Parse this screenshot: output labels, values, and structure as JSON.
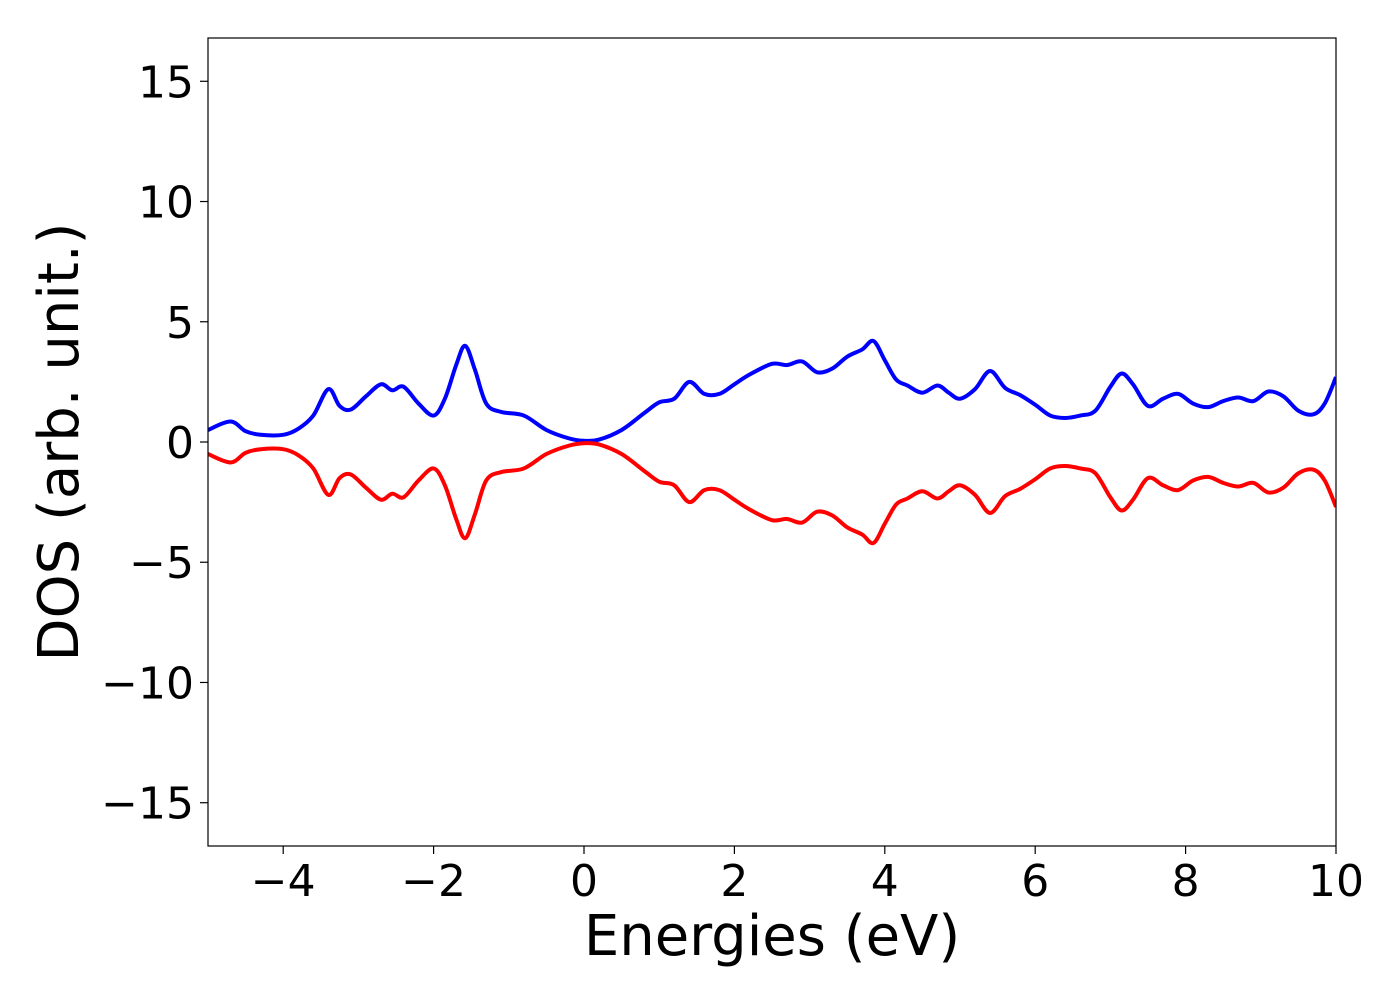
{
  "chart_data": {
    "type": "line",
    "title": "",
    "xlabel": "Energies (eV)",
    "ylabel": "DOS (arb. unit.)",
    "xlim": [
      -5,
      10
    ],
    "ylim": [
      -16.8,
      16.8
    ],
    "grid": false,
    "x_ticks": [
      -4,
      -2,
      0,
      2,
      4,
      6,
      8,
      10
    ],
    "x_tick_labels": [
      "−4",
      "−2",
      "0",
      "2",
      "4",
      "6",
      "8",
      "10"
    ],
    "y_ticks": [
      15,
      10,
      5,
      0,
      -5,
      -10,
      -15
    ],
    "y_tick_labels": [
      "15",
      "10",
      "5",
      "0",
      "−5",
      "−10",
      "−15"
    ],
    "series": [
      {
        "color": "#0000ff",
        "points": [
          [
            -5.0,
            0.5
          ],
          [
            -4.7,
            0.85
          ],
          [
            -4.5,
            0.45
          ],
          [
            -4.3,
            0.3
          ],
          [
            -4.0,
            0.3
          ],
          [
            -3.8,
            0.55
          ],
          [
            -3.6,
            1.1
          ],
          [
            -3.4,
            2.2
          ],
          [
            -3.25,
            1.5
          ],
          [
            -3.1,
            1.35
          ],
          [
            -2.9,
            1.9
          ],
          [
            -2.7,
            2.4
          ],
          [
            -2.55,
            2.15
          ],
          [
            -2.4,
            2.3
          ],
          [
            -2.2,
            1.6
          ],
          [
            -2.0,
            1.1
          ],
          [
            -1.85,
            1.8
          ],
          [
            -1.7,
            3.2
          ],
          [
            -1.58,
            4.0
          ],
          [
            -1.45,
            3.0
          ],
          [
            -1.3,
            1.6
          ],
          [
            -1.1,
            1.25
          ],
          [
            -0.8,
            1.1
          ],
          [
            -0.5,
            0.5
          ],
          [
            -0.2,
            0.15
          ],
          [
            0.0,
            0.05
          ],
          [
            0.2,
            0.1
          ],
          [
            0.5,
            0.5
          ],
          [
            0.8,
            1.2
          ],
          [
            1.0,
            1.65
          ],
          [
            1.2,
            1.8
          ],
          [
            1.4,
            2.5
          ],
          [
            1.6,
            2.0
          ],
          [
            1.8,
            2.0
          ],
          [
            2.0,
            2.4
          ],
          [
            2.2,
            2.8
          ],
          [
            2.5,
            3.25
          ],
          [
            2.7,
            3.2
          ],
          [
            2.9,
            3.35
          ],
          [
            3.1,
            2.9
          ],
          [
            3.3,
            3.05
          ],
          [
            3.5,
            3.55
          ],
          [
            3.7,
            3.85
          ],
          [
            3.85,
            4.2
          ],
          [
            4.0,
            3.4
          ],
          [
            4.15,
            2.6
          ],
          [
            4.3,
            2.35
          ],
          [
            4.5,
            2.05
          ],
          [
            4.7,
            2.35
          ],
          [
            4.85,
            2.05
          ],
          [
            5.0,
            1.8
          ],
          [
            5.2,
            2.2
          ],
          [
            5.4,
            2.95
          ],
          [
            5.6,
            2.25
          ],
          [
            5.8,
            1.95
          ],
          [
            6.0,
            1.55
          ],
          [
            6.2,
            1.1
          ],
          [
            6.4,
            1.0
          ],
          [
            6.6,
            1.1
          ],
          [
            6.8,
            1.3
          ],
          [
            7.0,
            2.3
          ],
          [
            7.15,
            2.85
          ],
          [
            7.3,
            2.4
          ],
          [
            7.5,
            1.5
          ],
          [
            7.7,
            1.8
          ],
          [
            7.9,
            2.0
          ],
          [
            8.1,
            1.6
          ],
          [
            8.3,
            1.45
          ],
          [
            8.5,
            1.7
          ],
          [
            8.7,
            1.85
          ],
          [
            8.9,
            1.7
          ],
          [
            9.1,
            2.1
          ],
          [
            9.3,
            1.9
          ],
          [
            9.5,
            1.3
          ],
          [
            9.7,
            1.15
          ],
          [
            9.85,
            1.6
          ],
          [
            10.0,
            2.7
          ]
        ]
      },
      {
        "color": "#ff0000",
        "points": [
          [
            -5.0,
            -0.5
          ],
          [
            -4.7,
            -0.85
          ],
          [
            -4.5,
            -0.45
          ],
          [
            -4.3,
            -0.3
          ],
          [
            -4.0,
            -0.3
          ],
          [
            -3.8,
            -0.55
          ],
          [
            -3.6,
            -1.1
          ],
          [
            -3.4,
            -2.2
          ],
          [
            -3.25,
            -1.5
          ],
          [
            -3.1,
            -1.35
          ],
          [
            -2.9,
            -1.9
          ],
          [
            -2.7,
            -2.4
          ],
          [
            -2.55,
            -2.15
          ],
          [
            -2.4,
            -2.3
          ],
          [
            -2.2,
            -1.6
          ],
          [
            -2.0,
            -1.1
          ],
          [
            -1.85,
            -1.8
          ],
          [
            -1.7,
            -3.2
          ],
          [
            -1.58,
            -4.0
          ],
          [
            -1.45,
            -3.0
          ],
          [
            -1.3,
            -1.6
          ],
          [
            -1.1,
            -1.25
          ],
          [
            -0.8,
            -1.1
          ],
          [
            -0.5,
            -0.5
          ],
          [
            -0.2,
            -0.15
          ],
          [
            0.0,
            -0.05
          ],
          [
            0.2,
            -0.1
          ],
          [
            0.5,
            -0.5
          ],
          [
            0.8,
            -1.2
          ],
          [
            1.0,
            -1.65
          ],
          [
            1.2,
            -1.8
          ],
          [
            1.4,
            -2.5
          ],
          [
            1.6,
            -2.0
          ],
          [
            1.8,
            -2.0
          ],
          [
            2.0,
            -2.4
          ],
          [
            2.2,
            -2.8
          ],
          [
            2.5,
            -3.25
          ],
          [
            2.7,
            -3.2
          ],
          [
            2.9,
            -3.35
          ],
          [
            3.1,
            -2.9
          ],
          [
            3.3,
            -3.05
          ],
          [
            3.5,
            -3.55
          ],
          [
            3.7,
            -3.85
          ],
          [
            3.85,
            -4.2
          ],
          [
            4.0,
            -3.4
          ],
          [
            4.15,
            -2.6
          ],
          [
            4.3,
            -2.35
          ],
          [
            4.5,
            -2.05
          ],
          [
            4.7,
            -2.35
          ],
          [
            4.85,
            -2.05
          ],
          [
            5.0,
            -1.8
          ],
          [
            5.2,
            -2.2
          ],
          [
            5.4,
            -2.95
          ],
          [
            5.6,
            -2.25
          ],
          [
            5.8,
            -1.95
          ],
          [
            6.0,
            -1.55
          ],
          [
            6.2,
            -1.1
          ],
          [
            6.4,
            -1.0
          ],
          [
            6.6,
            -1.1
          ],
          [
            6.8,
            -1.3
          ],
          [
            7.0,
            -2.3
          ],
          [
            7.15,
            -2.85
          ],
          [
            7.3,
            -2.4
          ],
          [
            7.5,
            -1.5
          ],
          [
            7.7,
            -1.8
          ],
          [
            7.9,
            -2.0
          ],
          [
            8.1,
            -1.6
          ],
          [
            8.3,
            -1.45
          ],
          [
            8.5,
            -1.7
          ],
          [
            8.7,
            -1.85
          ],
          [
            8.9,
            -1.7
          ],
          [
            9.1,
            -2.1
          ],
          [
            9.3,
            -1.9
          ],
          [
            9.5,
            -1.3
          ],
          [
            9.7,
            -1.15
          ],
          [
            9.85,
            -1.6
          ],
          [
            10.0,
            -2.7
          ]
        ]
      }
    ]
  }
}
